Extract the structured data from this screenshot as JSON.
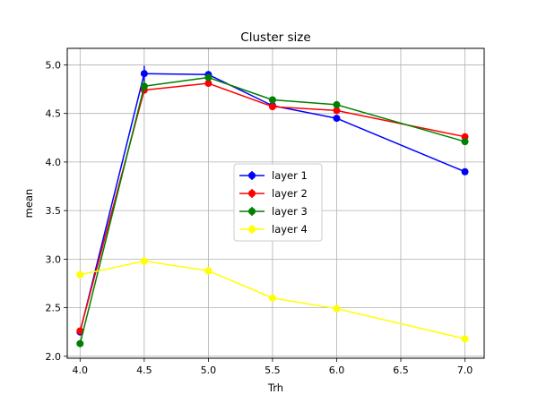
{
  "chart_data": {
    "type": "line",
    "title": "Cluster size",
    "xlabel": "Trh",
    "ylabel": "mean",
    "xlim": [
      3.9,
      7.15
    ],
    "ylim": [
      1.98,
      5.17
    ],
    "xticks": [
      4.0,
      4.5,
      5.0,
      5.5,
      6.0,
      6.5,
      7.0
    ],
    "xtick_labels": [
      "4.0",
      "4.5",
      "5.0",
      "5.5",
      "6.0",
      "6.5",
      "7.0"
    ],
    "yticks": [
      2.0,
      2.5,
      3.0,
      3.5,
      4.0,
      4.5,
      5.0
    ],
    "ytick_labels": [
      "2.0",
      "2.5",
      "3.0",
      "3.5",
      "4.0",
      "4.5",
      "5.0"
    ],
    "grid": true,
    "legend_position": "center",
    "series": [
      {
        "name": "layer 1",
        "color": "#0000ff",
        "x": [
          4.0,
          4.5,
          5.0,
          5.5,
          6.0,
          7.0
        ],
        "y": [
          2.25,
          4.91,
          4.9,
          4.58,
          4.45,
          3.9
        ],
        "err": [
          0.01,
          0.08,
          0.03,
          0.01,
          0.01,
          0.01
        ]
      },
      {
        "name": "layer 2",
        "color": "#ff0000",
        "x": [
          4.0,
          4.5,
          5.0,
          5.5,
          6.0,
          7.0
        ],
        "y": [
          2.26,
          4.74,
          4.81,
          4.57,
          4.53,
          4.26
        ],
        "err": [
          0.02,
          0.02,
          0.02,
          0.01,
          0.01,
          0.01
        ]
      },
      {
        "name": "layer 3",
        "color": "#008000",
        "x": [
          4.0,
          4.5,
          5.0,
          5.5,
          6.0,
          7.0
        ],
        "y": [
          2.13,
          4.78,
          4.87,
          4.64,
          4.59,
          4.21
        ],
        "err": [
          0.01,
          0.06,
          0.02,
          0.01,
          0.01,
          0.01
        ]
      },
      {
        "name": "layer 4",
        "color": "#ffff00",
        "x": [
          4.0,
          4.5,
          5.0,
          5.5,
          6.0,
          7.0
        ],
        "y": [
          2.84,
          2.98,
          2.88,
          2.6,
          2.49,
          2.18
        ],
        "err": [
          0.01,
          0.04,
          0.04,
          0.01,
          0.01,
          0.01
        ]
      }
    ]
  }
}
